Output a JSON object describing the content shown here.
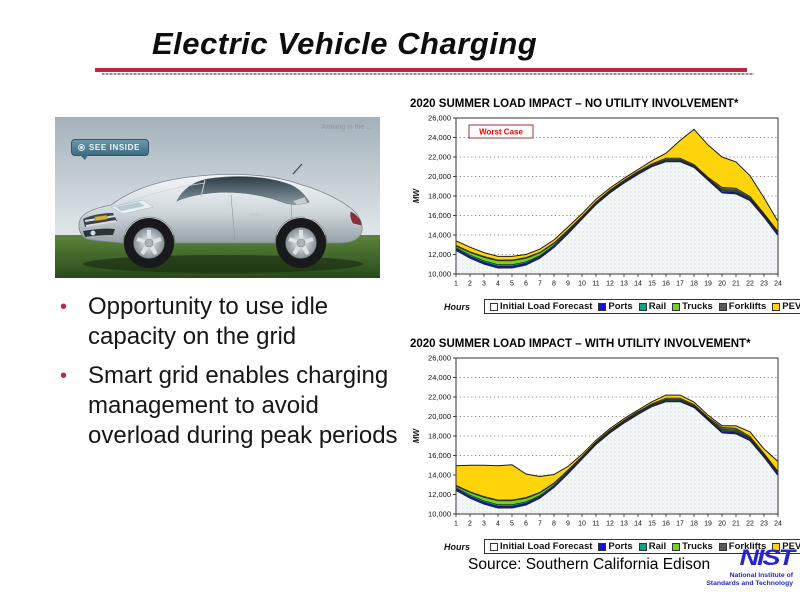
{
  "slide": {
    "title": "Electric Vehicle Charging",
    "bullets": [
      "Opportunity to use idle capacity on the grid",
      "Smart grid enables charging management to avoid overload during peak periods"
    ],
    "source": "Source: Southern California Edison"
  },
  "car_image": {
    "badge_label": "SEE INSIDE",
    "caption": "Arriving in the ..."
  },
  "nist_logo": {
    "wordmark": "NIST",
    "line1": "National Institute of",
    "line2": "Standards and Technology",
    "color": "#2626cc"
  },
  "theme": {
    "accent_red": "#c2253f",
    "bullet_red": "#b5294e",
    "annotation_red": "#ee0000"
  },
  "chart_data": [
    {
      "type": "area",
      "stacked": true,
      "title": "2020 SUMMER LOAD IMPACT – NO UTILITY INVOLVEMENT*",
      "annotation": "Worst Case",
      "xlabel": "Hours",
      "ylabel": "MW",
      "x": [
        1,
        2,
        3,
        4,
        5,
        6,
        7,
        8,
        9,
        10,
        11,
        12,
        13,
        14,
        15,
        16,
        17,
        18,
        19,
        20,
        21,
        22,
        23,
        24
      ],
      "ylim": [
        10000,
        26000
      ],
      "ytick_step": 2000,
      "grid": "dotted-horizontal",
      "legend_position": "bottom",
      "series": [
        {
          "name": "Initial Load Forecast",
          "color": "#f3f7f8",
          "values": [
            12400,
            11600,
            11000,
            10600,
            10600,
            10900,
            11600,
            12700,
            14100,
            15600,
            17100,
            18300,
            19300,
            20200,
            21000,
            21500,
            21500,
            20900,
            19600,
            18300,
            18200,
            17500,
            15800,
            13900
          ]
        },
        {
          "name": "Ports",
          "color": "#1414cc",
          "values": [
            200,
            200,
            200,
            200,
            200,
            200,
            200,
            150,
            150,
            100,
            100,
            100,
            100,
            100,
            100,
            100,
            100,
            100,
            100,
            150,
            150,
            150,
            150,
            200
          ]
        },
        {
          "name": "Rail",
          "color": "#0ba380",
          "values": [
            100,
            150,
            150,
            150,
            150,
            150,
            100,
            100,
            100,
            80,
            80,
            80,
            80,
            80,
            80,
            80,
            80,
            80,
            80,
            100,
            100,
            100,
            100,
            100
          ]
        },
        {
          "name": "Trucks",
          "color": "#70d41f",
          "values": [
            150,
            250,
            350,
            400,
            400,
            350,
            250,
            150,
            100,
            60,
            60,
            60,
            60,
            60,
            60,
            60,
            60,
            60,
            60,
            100,
            100,
            80,
            80,
            80
          ]
        },
        {
          "name": "Forklifts",
          "color": "#5a5a5a",
          "values": [
            100,
            100,
            100,
            100,
            100,
            100,
            100,
            100,
            80,
            80,
            80,
            80,
            80,
            80,
            80,
            150,
            150,
            100,
            100,
            250,
            250,
            150,
            100,
            100
          ]
        },
        {
          "name": "PEVs",
          "color": "#ffd40a",
          "values": [
            450,
            450,
            400,
            350,
            350,
            300,
            300,
            300,
            300,
            250,
            250,
            200,
            200,
            200,
            300,
            500,
            1800,
            3600,
            3300,
            3100,
            2700,
            2100,
            1600,
            1000
          ]
        }
      ]
    },
    {
      "type": "area",
      "stacked": true,
      "title": "2020 SUMMER LOAD IMPACT – WITH UTILITY INVOLVEMENT*",
      "annotation": null,
      "xlabel": "Hours",
      "ylabel": "MW",
      "x": [
        1,
        2,
        3,
        4,
        5,
        6,
        7,
        8,
        9,
        10,
        11,
        12,
        13,
        14,
        15,
        16,
        17,
        18,
        19,
        20,
        21,
        22,
        23,
        24
      ],
      "ylim": [
        10000,
        26000
      ],
      "ytick_step": 2000,
      "grid": "dotted-horizontal",
      "legend_position": "bottom",
      "series": [
        {
          "name": "Initial Load Forecast",
          "color": "#f3f7f8",
          "values": [
            12400,
            11600,
            11000,
            10600,
            10600,
            10900,
            11600,
            12700,
            14100,
            15600,
            17100,
            18300,
            19300,
            20200,
            21000,
            21500,
            21500,
            20900,
            19600,
            18300,
            18200,
            17500,
            15800,
            13900
          ]
        },
        {
          "name": "Ports",
          "color": "#1414cc",
          "values": [
            200,
            200,
            200,
            200,
            200,
            200,
            200,
            150,
            150,
            100,
            100,
            100,
            100,
            100,
            100,
            100,
            100,
            100,
            100,
            150,
            150,
            150,
            150,
            200
          ]
        },
        {
          "name": "Rail",
          "color": "#0ba380",
          "values": [
            100,
            150,
            150,
            150,
            150,
            150,
            100,
            100,
            100,
            80,
            80,
            80,
            80,
            80,
            80,
            80,
            80,
            80,
            80,
            100,
            100,
            100,
            100,
            100
          ]
        },
        {
          "name": "Trucks",
          "color": "#70d41f",
          "values": [
            150,
            250,
            350,
            400,
            400,
            350,
            250,
            150,
            100,
            60,
            60,
            60,
            60,
            60,
            60,
            60,
            60,
            60,
            60,
            100,
            100,
            80,
            80,
            80
          ]
        },
        {
          "name": "Forklifts",
          "color": "#5a5a5a",
          "values": [
            100,
            100,
            100,
            100,
            100,
            100,
            100,
            100,
            80,
            80,
            80,
            80,
            80,
            80,
            80,
            150,
            150,
            100,
            100,
            250,
            250,
            150,
            100,
            100
          ]
        },
        {
          "name": "PEVs",
          "color": "#ffd40a",
          "values": [
            2000,
            2700,
            3200,
            3500,
            3600,
            2400,
            1600,
            850,
            350,
            200,
            150,
            150,
            150,
            150,
            200,
            300,
            300,
            250,
            200,
            150,
            250,
            450,
            450,
            1000
          ]
        }
      ]
    }
  ]
}
